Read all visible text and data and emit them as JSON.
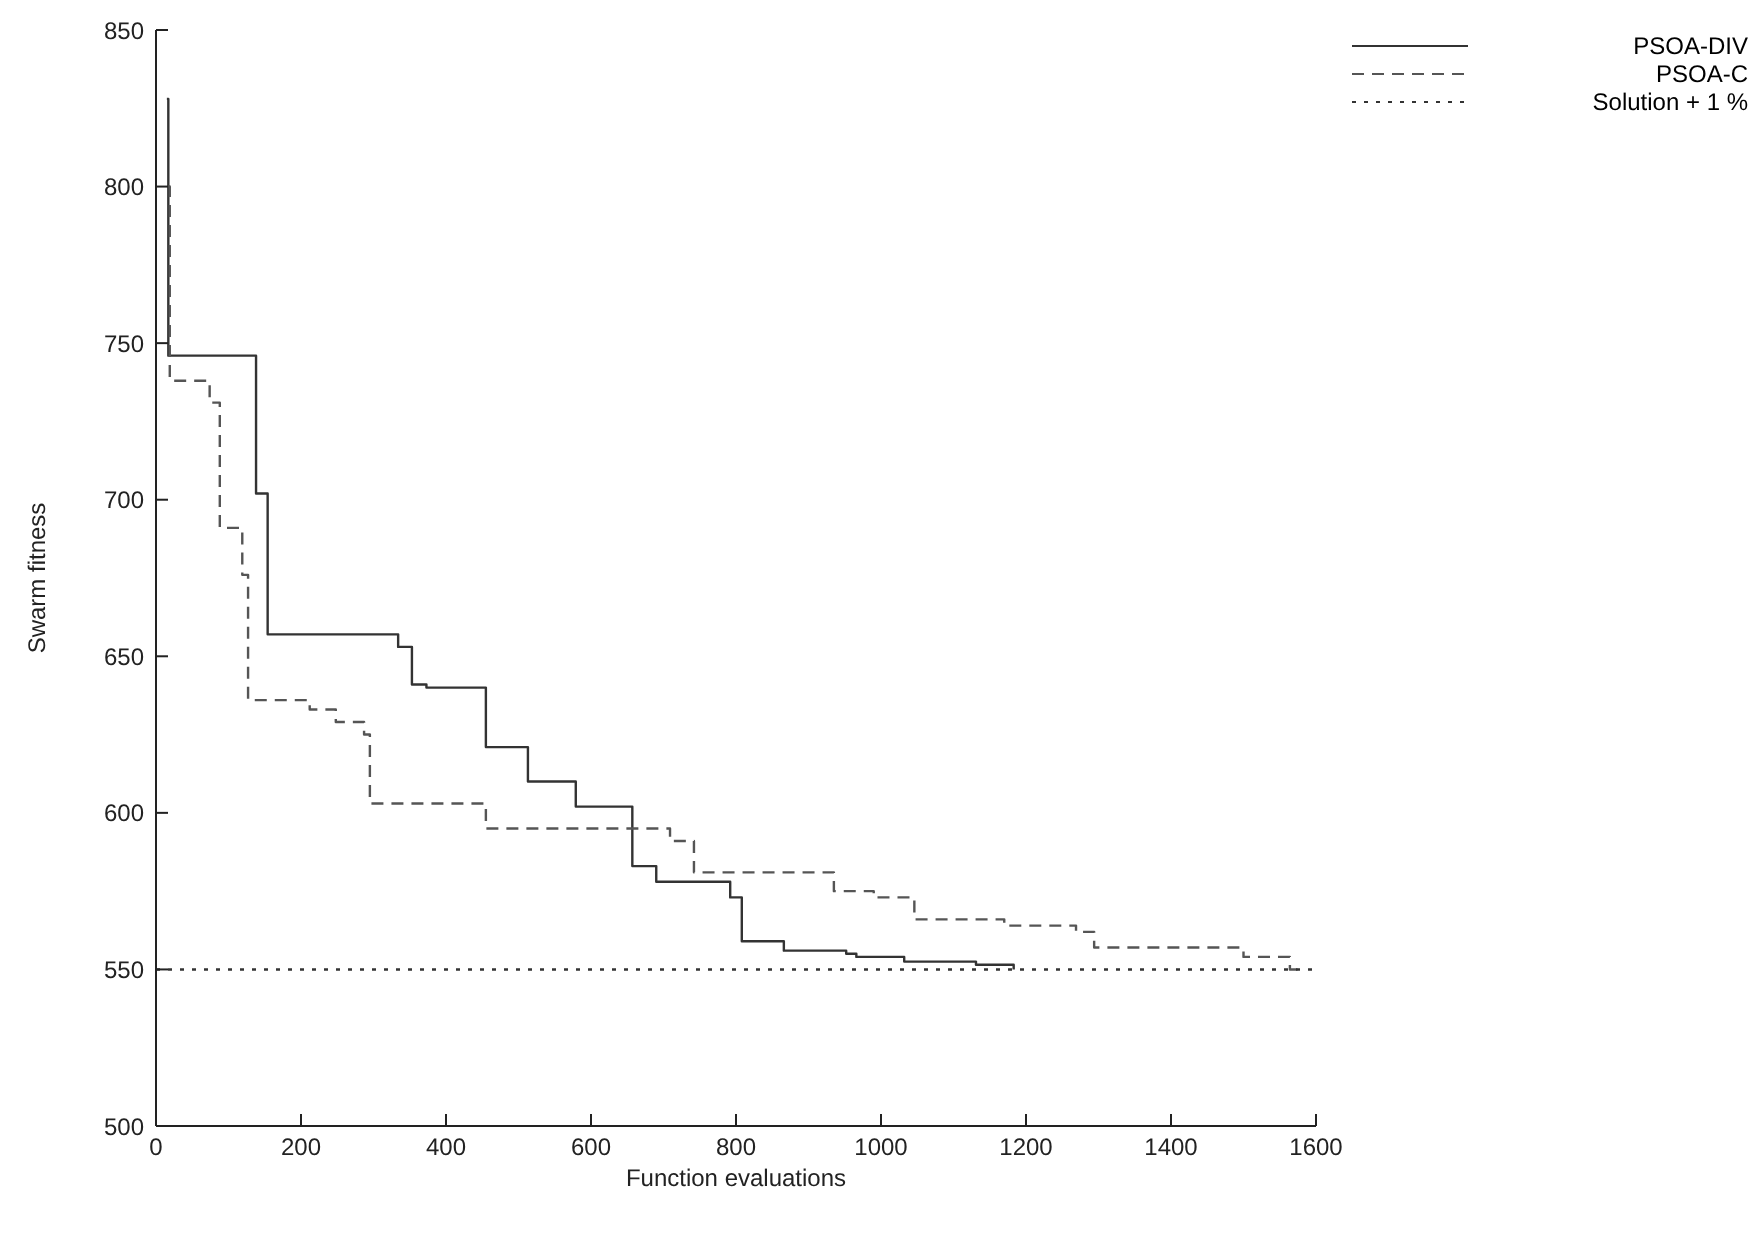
{
  "chart_data": {
    "type": "step",
    "xlabel": "Function evaluations",
    "ylabel": "Swarm fitness",
    "xlim": [
      0,
      1600
    ],
    "ylim": [
      500,
      850
    ],
    "xticks": [
      0,
      200,
      400,
      600,
      800,
      1000,
      1200,
      1400,
      1600
    ],
    "yticks": [
      500,
      550,
      600,
      650,
      700,
      750,
      800,
      850
    ],
    "legend": "top right",
    "marker": "none",
    "series": [
      {
        "name": "PSOA-DIV",
        "color": "#333333",
        "line_style": "solid",
        "x": [
          15,
          17,
          138,
          154,
          334,
          353,
          373,
          455,
          513,
          579,
          657,
          690,
          792,
          808,
          866,
          952,
          966,
          1032,
          1131,
          1183
        ],
        "values": [
          828,
          746,
          702,
          657,
          653,
          641,
          640,
          621,
          610,
          602,
          583,
          578,
          573,
          559,
          556,
          555,
          554,
          552.5,
          551.5,
          550
        ]
      },
      {
        "name": "PSOA-C",
        "color": "#555555",
        "line_style": "dashed",
        "x": [
          17,
          19,
          74,
          88,
          119,
          127,
          212,
          248,
          287,
          295,
          455,
          709,
          742,
          935,
          990,
          1046,
          1170,
          1269,
          1294,
          1500,
          1564,
          1580
        ],
        "values": [
          800,
          738,
          731,
          691,
          676,
          636,
          633,
          629,
          625,
          603,
          595,
          591,
          581,
          575,
          573,
          566,
          564,
          562,
          557,
          554,
          550,
          550
        ]
      },
      {
        "name": "Solution + 1 %",
        "color": "#333333",
        "line_style": "dotted",
        "x": [
          0,
          1600
        ],
        "values": [
          550,
          550
        ]
      }
    ]
  }
}
